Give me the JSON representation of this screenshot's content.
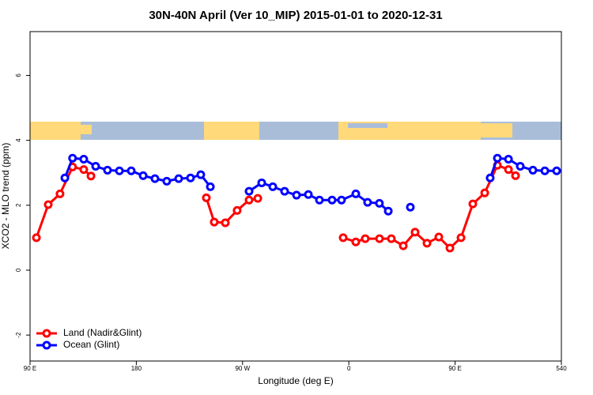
{
  "chart_data": {
    "type": "line",
    "title": "30N-40N April (Ver 10_MIP)   2015-01-01 to 2020-12-31",
    "x_label": "Longitude (deg E)",
    "y_label": "XCO2 - MLO trend (ppm)",
    "xlim": [
      90,
      540
    ],
    "ylim": [
      -2.8,
      7.35
    ],
    "xticks": [
      {
        "value": 90,
        "label": "90 E"
      },
      180,
      {
        "value": 270,
        "label": "90 W"
      },
      {
        "value": 360,
        "label": "0"
      },
      {
        "value": 450,
        "label": "90 E"
      },
      540
    ],
    "yticks": [
      -2,
      0,
      2,
      4,
      6
    ],
    "legend": "bottomleft",
    "series": [
      {
        "name": "Land (Nadir&Glint)",
        "color": "#ff0000",
        "x": [
          95.4,
          105.4,
          115.4,
          126,
          135.5,
          141.6,
          null,
          239.3,
          246,
          255.4,
          265.4,
          275.5,
          282.9,
          null,
          355.2,
          365.9,
          373.9,
          386,
          396,
          406.1,
          416.1,
          426.2,
          436.2,
          445.6,
          455,
          465,
          475.1,
          485.8,
          495.2,
          501.2
        ],
        "values": [
          1.0,
          2.02,
          2.35,
          3.18,
          3.1,
          2.9,
          null,
          2.23,
          1.48,
          1.46,
          1.84,
          2.16,
          2.21,
          null,
          1.0,
          0.87,
          0.97,
          0.97,
          0.97,
          0.75,
          1.17,
          0.83,
          1.02,
          0.68,
          1.0,
          2.04,
          2.38,
          3.23,
          3.1,
          2.91
        ]
      },
      {
        "name": "Ocean (Glint)",
        "color": "#0000ff",
        "x": [
          119.5,
          126,
          135.5,
          145.6,
          155.6,
          165.7,
          175.7,
          185.8,
          195.8,
          205.8,
          215.9,
          225.9,
          234.6,
          242.7,
          null,
          275.5,
          286.2,
          295.6,
          305.6,
          315.7,
          325.7,
          335.1,
          345.8,
          353.8,
          365.9,
          375.9,
          385.9,
          393.4,
          null,
          412.1,
          null,
          479.7,
          485.8,
          495.2,
          505.2,
          515.9,
          526,
          536
        ],
        "values": [
          2.84,
          3.45,
          3.42,
          3.2,
          3.08,
          3.06,
          3.06,
          2.91,
          2.82,
          2.74,
          2.82,
          2.84,
          2.94,
          2.57,
          null,
          2.43,
          2.69,
          2.57,
          2.43,
          2.31,
          2.33,
          2.16,
          2.16,
          2.16,
          2.35,
          2.09,
          2.06,
          1.82,
          null,
          1.94,
          null,
          2.84,
          3.45,
          3.42,
          3.2,
          3.08,
          3.06,
          3.06
        ]
      }
    ]
  }
}
